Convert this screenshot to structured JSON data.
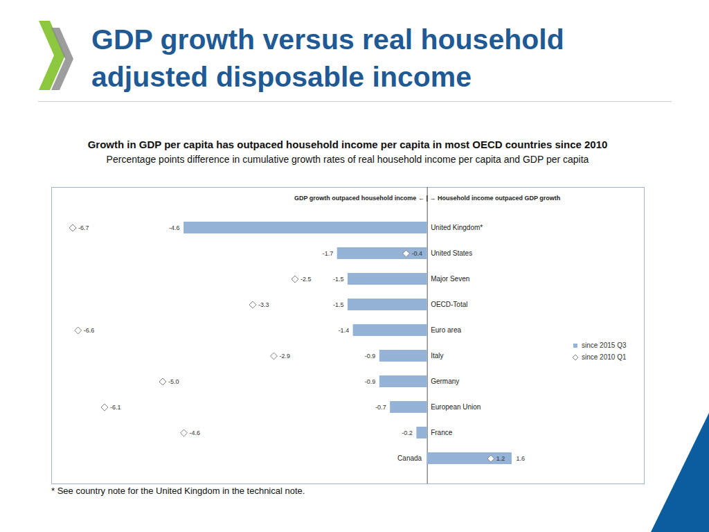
{
  "heading": "GDP growth versus real household adjusted disposable income",
  "chart_data": {
    "type": "bar",
    "orientation": "horizontal",
    "title": "Growth in GDP per capita has outpaced household income per capita in most OECD countries since 2010",
    "subtitle": "Percentage points difference in cumulative growth rates of real household income per capita and GDP per capita",
    "annotation": "GDP growth outpaced household income ← | → Household income outpaced GDP growth",
    "caption": "* See country note for the United Kingdom in the technical note.",
    "categories": [
      "United Kingdom*",
      "United States",
      "Major Seven",
      "OECD-Total",
      "Euro area",
      "Italy",
      "Germany",
      "European Union",
      "France",
      "Canada"
    ],
    "series": [
      {
        "name": "since 2015 Q3",
        "type": "bar",
        "color": "#95b3d7",
        "values": [
          -4.6,
          -1.7,
          -1.5,
          -1.5,
          -1.4,
          -0.9,
          -0.9,
          -0.7,
          -0.2,
          1.6
        ]
      },
      {
        "name": "since 2010 Q1",
        "type": "scatter",
        "marker": "diamond",
        "color": "#7f7f7f",
        "values": [
          -6.7,
          -0.4,
          -2.5,
          -3.3,
          -6.6,
          -2.9,
          -5.0,
          -6.1,
          -4.6,
          1.2
        ],
        "value_labels": [
          "-6.7",
          "-0.4",
          "-2.5",
          "-3.3",
          "-6.6",
          "-2.9",
          "-5.0",
          "-6.1",
          "-4.6",
          "1.2"
        ]
      }
    ],
    "xlim": [
      -7.1,
      4.1
    ],
    "tick_labels": "y",
    "data_labels": true,
    "legend": "right"
  }
}
